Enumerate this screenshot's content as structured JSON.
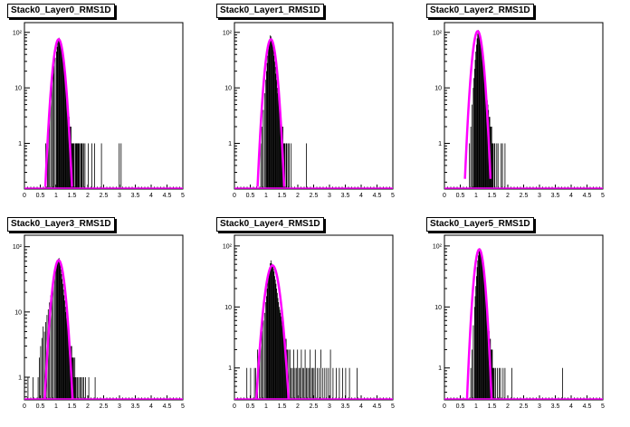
{
  "colors": {
    "histogram": "#000000",
    "fit": "#ff00ff",
    "background": "#ffffff",
    "frame": "#000000"
  },
  "chart_data": [
    {
      "type": "histogram",
      "title": "Stack0_Layer0_RMS1D",
      "x_ticks": [
        "0",
        "0.5",
        "1",
        "1.5",
        "2",
        "2.5",
        "3",
        "3.5",
        "4",
        "4.5",
        "5"
      ],
      "xlim": [
        0,
        5
      ],
      "y_scale": "log",
      "ylim": [
        0.15,
        150
      ],
      "y_ticks": [
        {
          "value": 1,
          "label": "1"
        },
        {
          "value": 10,
          "label": "10"
        },
        {
          "value": 100,
          "label": "10²"
        }
      ],
      "fit": {
        "peak": 75,
        "mean": 1.08,
        "sigma": 0.12
      },
      "histogram": {
        "bin_width": 0.02,
        "x": [
          0.66,
          0.72,
          0.74,
          0.78,
          0.82,
          0.86,
          0.9,
          0.92,
          0.96,
          1.0,
          1.02,
          1.04,
          1.06,
          1.08,
          1.1,
          1.12,
          1.14,
          1.16,
          1.18,
          1.2,
          1.22,
          1.24,
          1.26,
          1.28,
          1.3,
          1.32,
          1.34,
          1.36,
          1.38,
          1.4,
          1.42,
          1.44,
          1.46,
          1.48,
          1.5,
          1.52,
          1.54,
          1.56,
          1.6,
          1.62,
          1.64,
          1.66,
          1.68,
          1.7,
          1.72,
          1.76,
          1.78,
          1.8,
          1.82,
          1.86,
          1.9,
          2.0,
          2.12,
          2.2,
          2.42,
          2.98,
          3.04
        ],
        "y": [
          1,
          1,
          2,
          4,
          7,
          12,
          18,
          25,
          35,
          45,
          55,
          65,
          72,
          80,
          75,
          70,
          60,
          50,
          42,
          35,
          28,
          22,
          16,
          12,
          9,
          7,
          5,
          4,
          3,
          3,
          2,
          2,
          2,
          1,
          1,
          1,
          1,
          1,
          1,
          1,
          1,
          1,
          1,
          1,
          1,
          1,
          1,
          1,
          1,
          1,
          1,
          1,
          1,
          1,
          1,
          1,
          1
        ]
      }
    },
    {
      "type": "histogram",
      "title": "Stack0_Layer1_RMS1D",
      "x_ticks": [
        "0",
        "0.5",
        "1",
        "1.5",
        "2",
        "2.5",
        "3",
        "3.5",
        "4",
        "4.5",
        "5"
      ],
      "xlim": [
        0,
        5
      ],
      "y_scale": "log",
      "ylim": [
        0.15,
        150
      ],
      "y_ticks": [
        {
          "value": 1,
          "label": "1"
        },
        {
          "value": 10,
          "label": "10"
        },
        {
          "value": 100,
          "label": "10²"
        }
      ],
      "fit": {
        "peak": 75,
        "mean": 1.15,
        "sigma": 0.12
      },
      "histogram": {
        "bin_width": 0.02,
        "x": [
          0.82,
          0.86,
          0.9,
          0.94,
          0.98,
          1.0,
          1.02,
          1.04,
          1.06,
          1.08,
          1.1,
          1.12,
          1.14,
          1.16,
          1.18,
          1.2,
          1.22,
          1.24,
          1.26,
          1.28,
          1.3,
          1.32,
          1.34,
          1.36,
          1.38,
          1.4,
          1.42,
          1.44,
          1.46,
          1.48,
          1.5,
          1.52,
          1.54,
          1.56,
          1.58,
          1.62,
          1.64,
          1.68,
          1.72,
          1.78,
          2.26
        ],
        "y": [
          1,
          2,
          4,
          8,
          14,
          20,
          28,
          38,
          50,
          62,
          75,
          88,
          85,
          78,
          68,
          58,
          48,
          38,
          30,
          24,
          18,
          14,
          10,
          8,
          6,
          5,
          4,
          3,
          3,
          2,
          2,
          2,
          1,
          1,
          1,
          1,
          1,
          1,
          1,
          1,
          1
        ]
      }
    },
    {
      "type": "histogram",
      "title": "Stack0_Layer2_RMS1D",
      "x_ticks": [
        "0",
        "0.5",
        "1",
        "1.5",
        "2",
        "2.5",
        "3",
        "3.5",
        "4",
        "4.5",
        "5"
      ],
      "xlim": [
        0,
        5
      ],
      "y_scale": "log",
      "ylim": [
        0.15,
        150
      ],
      "y_ticks": [
        {
          "value": 1,
          "label": "1"
        },
        {
          "value": 10,
          "label": "10"
        },
        {
          "value": 100,
          "label": "10²"
        }
      ],
      "fit": {
        "peak": 105,
        "mean": 1.05,
        "sigma": 0.115
      },
      "histogram": {
        "bin_width": 0.02,
        "x": [
          0.78,
          0.82,
          0.86,
          0.9,
          0.92,
          0.94,
          0.96,
          0.98,
          1.0,
          1.02,
          1.04,
          1.06,
          1.08,
          1.1,
          1.12,
          1.14,
          1.16,
          1.18,
          1.2,
          1.22,
          1.24,
          1.26,
          1.28,
          1.3,
          1.32,
          1.34,
          1.36,
          1.38,
          1.4,
          1.42,
          1.44,
          1.46,
          1.48,
          1.5,
          1.52,
          1.56,
          1.58,
          1.64,
          1.68,
          1.78,
          1.82,
          1.9
        ],
        "y": [
          1,
          2,
          5,
          10,
          15,
          22,
          32,
          45,
          60,
          78,
          95,
          110,
          105,
          98,
          88,
          75,
          60,
          48,
          38,
          28,
          20,
          15,
          12,
          10,
          8,
          6,
          5,
          4,
          3,
          3,
          2,
          2,
          2,
          1,
          1,
          1,
          1,
          1,
          1,
          1,
          1,
          1
        ]
      }
    },
    {
      "type": "histogram",
      "title": "Stack0_Layer3_RMS1D",
      "x_ticks": [
        "0",
        "0.5",
        "1",
        "1.5",
        "2",
        "2.5",
        "3",
        "3.5",
        "4",
        "4.5",
        "5"
      ],
      "xlim": [
        0,
        5
      ],
      "y_scale": "log",
      "ylim": [
        0.45,
        150
      ],
      "y_ticks": [
        {
          "value": 1,
          "label": "1"
        },
        {
          "value": 10,
          "label": "10"
        },
        {
          "value": 100,
          "label": "10²"
        }
      ],
      "fit": {
        "peak": 62,
        "mean": 1.08,
        "sigma": 0.14
      },
      "histogram": {
        "bin_width": 0.02,
        "x": [
          0.1,
          0.26,
          0.42,
          0.46,
          0.5,
          0.54,
          0.58,
          0.62,
          0.66,
          0.7,
          0.74,
          0.78,
          0.82,
          0.86,
          0.9,
          0.94,
          0.98,
          1.0,
          1.02,
          1.04,
          1.06,
          1.08,
          1.1,
          1.12,
          1.14,
          1.16,
          1.18,
          1.2,
          1.22,
          1.24,
          1.26,
          1.28,
          1.3,
          1.32,
          1.34,
          1.36,
          1.38,
          1.4,
          1.42,
          1.44,
          1.46,
          1.48,
          1.5,
          1.52,
          1.54,
          1.56,
          1.58,
          1.6,
          1.62,
          1.66,
          1.7,
          1.74,
          1.78,
          1.82,
          1.86,
          1.92,
          2.02,
          2.22
        ],
        "y": [
          1,
          1,
          1,
          2,
          3,
          4,
          6,
          5,
          7,
          9,
          11,
          14,
          18,
          22,
          30,
          38,
          45,
          50,
          58,
          62,
          65,
          67,
          60,
          52,
          45,
          38,
          32,
          27,
          22,
          18,
          15,
          12,
          10,
          8,
          7,
          6,
          5,
          5,
          4,
          3,
          3,
          3,
          2,
          2,
          2,
          1,
          2,
          1,
          1,
          1,
          1,
          1,
          1,
          1,
          1,
          1,
          1,
          1
        ]
      }
    },
    {
      "type": "histogram",
      "title": "Stack0_Layer4_RMS1D",
      "x_ticks": [
        "0",
        "0.5",
        "1",
        "1.5",
        "2",
        "2.5",
        "3",
        "3.5",
        "4",
        "4.5",
        "5"
      ],
      "xlim": [
        0,
        5
      ],
      "y_scale": "log",
      "ylim": [
        0.3,
        150
      ],
      "y_ticks": [
        {
          "value": 1,
          "label": "1"
        },
        {
          "value": 10,
          "label": "10"
        },
        {
          "value": 100,
          "label": "10²"
        }
      ],
      "fit": {
        "peak": 48,
        "mean": 1.2,
        "sigma": 0.16
      },
      "histogram": {
        "bin_width": 0.02,
        "x": [
          0.38,
          0.5,
          0.62,
          0.66,
          0.72,
          0.78,
          0.82,
          0.86,
          0.9,
          0.94,
          0.98,
          1.0,
          1.02,
          1.04,
          1.06,
          1.08,
          1.1,
          1.12,
          1.14,
          1.16,
          1.18,
          1.2,
          1.22,
          1.24,
          1.26,
          1.28,
          1.3,
          1.32,
          1.34,
          1.36,
          1.38,
          1.4,
          1.42,
          1.44,
          1.46,
          1.48,
          1.5,
          1.52,
          1.54,
          1.56,
          1.58,
          1.6,
          1.62,
          1.64,
          1.66,
          1.7,
          1.74,
          1.78,
          1.82,
          1.86,
          1.9,
          1.94,
          1.98,
          2.02,
          2.06,
          2.1,
          2.14,
          2.18,
          2.22,
          2.26,
          2.3,
          2.34,
          2.38,
          2.42,
          2.46,
          2.5,
          2.54,
          2.6,
          2.66,
          2.72,
          2.78,
          2.84,
          2.9,
          2.96,
          3.02,
          3.1,
          3.2,
          3.3,
          3.4,
          3.5,
          3.62,
          3.86
        ],
        "y": [
          1,
          1,
          1,
          1,
          2,
          2,
          3,
          4,
          6,
          8,
          12,
          15,
          20,
          25,
          30,
          38,
          45,
          52,
          58,
          52,
          50,
          46,
          42,
          38,
          32,
          28,
          24,
          20,
          17,
          14,
          12,
          10,
          9,
          8,
          7,
          6,
          5,
          5,
          4,
          4,
          3,
          3,
          3,
          2,
          2,
          2,
          2,
          1,
          1,
          2,
          1,
          1,
          2,
          1,
          1,
          2,
          1,
          1,
          2,
          1,
          1,
          1,
          2,
          1,
          1,
          1,
          2,
          1,
          1,
          2,
          1,
          1,
          1,
          1,
          2,
          1,
          1,
          1,
          1,
          1,
          1,
          1
        ]
      }
    },
    {
      "type": "histogram",
      "title": "Stack0_Layer5_RMS1D",
      "x_ticks": [
        "0",
        "0.5",
        "1",
        "1.5",
        "2",
        "2.5",
        "3",
        "3.5",
        "4",
        "4.5",
        "5"
      ],
      "xlim": [
        0,
        5
      ],
      "y_scale": "log",
      "ylim": [
        0.3,
        150
      ],
      "y_ticks": [
        {
          "value": 1,
          "label": "1"
        },
        {
          "value": 10,
          "label": "10"
        },
        {
          "value": 100,
          "label": "10²"
        }
      ],
      "fit": {
        "peak": 88,
        "mean": 1.1,
        "sigma": 0.115
      },
      "histogram": {
        "bin_width": 0.02,
        "x": [
          0.82,
          0.86,
          0.9,
          0.94,
          0.96,
          0.98,
          1.0,
          1.02,
          1.04,
          1.06,
          1.08,
          1.1,
          1.12,
          1.14,
          1.16,
          1.18,
          1.2,
          1.22,
          1.24,
          1.26,
          1.28,
          1.3,
          1.32,
          1.34,
          1.36,
          1.38,
          1.4,
          1.42,
          1.44,
          1.46,
          1.48,
          1.5,
          1.52,
          1.54,
          1.56,
          1.6,
          1.66,
          1.72,
          1.76,
          1.84,
          1.9,
          2.12,
          3.72
        ],
        "y": [
          1,
          2,
          5,
          10,
          15,
          22,
          32,
          45,
          58,
          70,
          82,
          92,
          88,
          80,
          70,
          58,
          48,
          38,
          30,
          22,
          16,
          12,
          9,
          7,
          5,
          4,
          4,
          3,
          3,
          2,
          2,
          2,
          1,
          1,
          1,
          1,
          1,
          1,
          1,
          1,
          1,
          1,
          1
        ]
      }
    }
  ]
}
